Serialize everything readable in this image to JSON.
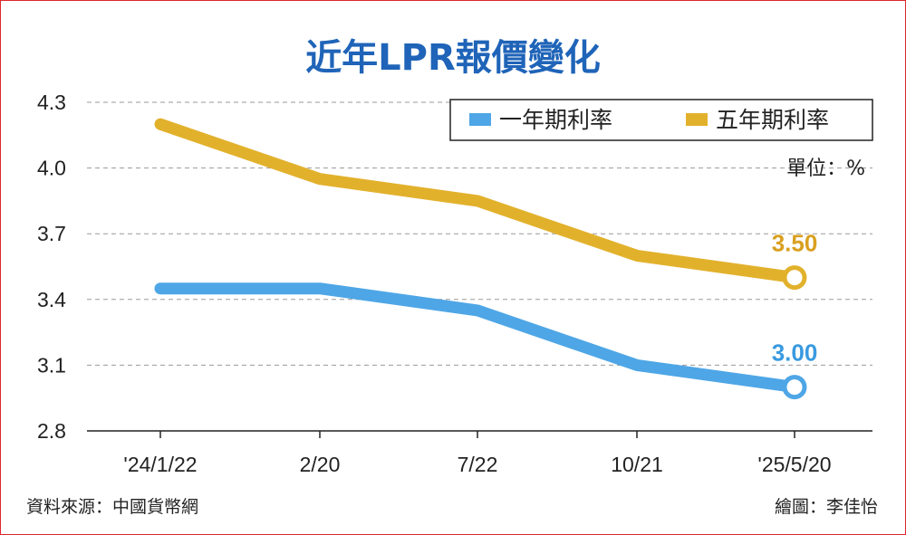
{
  "chart_data": {
    "type": "line",
    "title": "近年LPR報價變化",
    "unit": "單位：%",
    "categories": [
      "'24/1/22",
      "2/20",
      "7/22",
      "10/21",
      "'25/5/20"
    ],
    "yticks": [
      "4.3",
      "4.0",
      "3.7",
      "3.4",
      "3.1",
      "2.8"
    ],
    "ylim": [
      2.8,
      4.3
    ],
    "grid": true,
    "legend_position": "top-right",
    "series": [
      {
        "name": "一年期利率",
        "color": "#4ea6e6",
        "values": [
          3.45,
          3.45,
          3.35,
          3.1,
          3.0
        ],
        "end_label": "3.00"
      },
      {
        "name": "五年期利率",
        "color": "#e2b12c",
        "values": [
          4.2,
          3.95,
          3.85,
          3.6,
          3.5
        ],
        "end_label": "3.50"
      }
    ]
  },
  "footer": {
    "source": "資料來源：中國貨幣網",
    "credit": "繪圖：李佳怡"
  }
}
